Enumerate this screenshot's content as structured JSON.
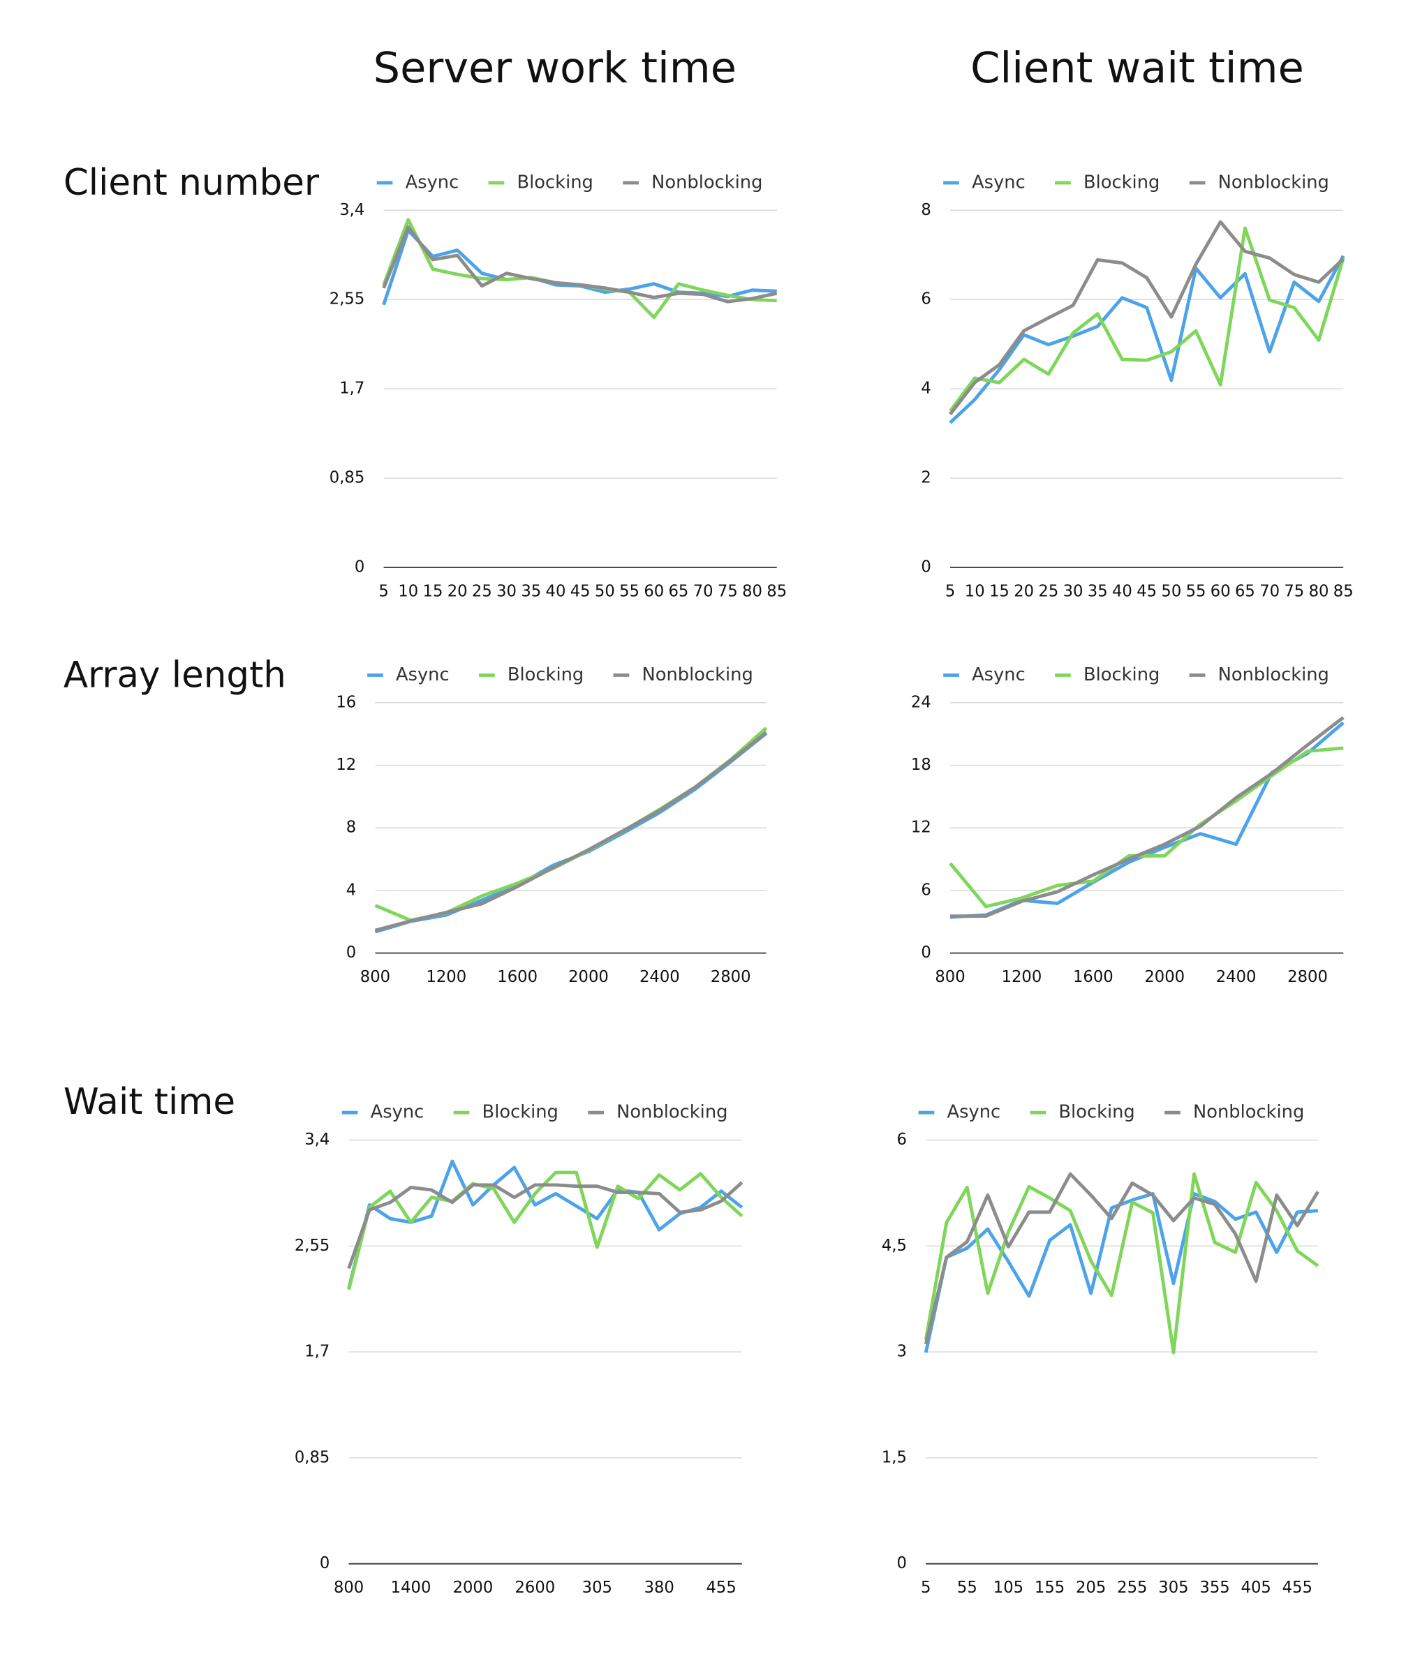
{
  "column_titles": [
    "Server work time",
    "Client wait time"
  ],
  "row_titles": [
    "Client number",
    "Array length",
    "Wait time"
  ],
  "chart_data": [
    {
      "type": "line",
      "legend": "top",
      "grid": true,
      "categories": [
        5,
        10,
        15,
        20,
        25,
        30,
        35,
        40,
        45,
        50,
        55,
        60,
        65,
        70,
        75,
        80,
        85
      ],
      "ylim": [
        0,
        3.4
      ],
      "yticks": [
        0,
        {
          "value": 0.85,
          "label": "0,85"
        },
        {
          "value": 1.7,
          "label": "1,7"
        },
        {
          "value": 2.55,
          "label": "2,55"
        },
        {
          "value": 3.4,
          "label": "3,4"
        }
      ],
      "series": [
        {
          "name": "Async",
          "color": "#4da3ea",
          "values": [
            2.5,
            3.21,
            2.96,
            3.02,
            2.8,
            2.74,
            2.76,
            2.69,
            2.68,
            2.62,
            2.65,
            2.7,
            2.62,
            2.61,
            2.58,
            2.64,
            2.63
          ]
        },
        {
          "name": "Blocking",
          "color": "#7fd65a",
          "values": [
            2.69,
            3.31,
            2.84,
            2.79,
            2.75,
            2.74,
            2.76,
            2.71,
            2.69,
            2.65,
            2.62,
            2.38,
            2.7,
            2.64,
            2.59,
            2.55,
            2.54
          ]
        },
        {
          "name": "Nonblocking",
          "color": "#8c8c8c",
          "values": [
            2.66,
            3.24,
            2.93,
            2.97,
            2.68,
            2.8,
            2.75,
            2.71,
            2.69,
            2.66,
            2.62,
            2.57,
            2.61,
            2.6,
            2.53,
            2.56,
            2.61
          ]
        }
      ]
    },
    {
      "type": "line",
      "legend": "top",
      "grid": true,
      "categories": [
        5,
        10,
        15,
        20,
        25,
        30,
        35,
        40,
        45,
        50,
        55,
        60,
        65,
        70,
        75,
        80,
        85
      ],
      "ylim": [
        0,
        8
      ],
      "yticks": [
        0,
        2,
        4,
        6,
        8
      ],
      "series": [
        {
          "name": "Async",
          "color": "#4da3ea",
          "values": [
            3.24,
            3.76,
            4.43,
            5.21,
            4.99,
            5.18,
            5.4,
            6.04,
            5.82,
            4.19,
            6.7,
            6.04,
            6.58,
            4.83,
            6.39,
            5.96,
            6.98
          ]
        },
        {
          "name": "Blocking",
          "color": "#7fd65a",
          "values": [
            3.5,
            4.24,
            4.14,
            4.66,
            4.33,
            5.25,
            5.68,
            4.66,
            4.64,
            4.83,
            5.3,
            4.09,
            7.6,
            5.99,
            5.82,
            5.09,
            6.93
          ]
        },
        {
          "name": "Nonblocking",
          "color": "#8c8c8c",
          "values": [
            3.43,
            4.14,
            4.54,
            5.3,
            5.59,
            5.87,
            6.89,
            6.82,
            6.49,
            5.61,
            6.79,
            7.74,
            7.08,
            6.93,
            6.56,
            6.39,
            6.91
          ]
        }
      ]
    },
    {
      "type": "line",
      "legend": "top",
      "grid": true,
      "categories": [
        800,
        null,
        1200,
        null,
        1600,
        null,
        2000,
        null,
        2400,
        null,
        2800,
        null
      ],
      "ylim": [
        0,
        16
      ],
      "yticks": [
        0,
        4,
        8,
        12,
        16
      ],
      "series": [
        {
          "name": "Async",
          "color": "#4da3ea",
          "values": [
            1.35,
            2.03,
            2.43,
            3.38,
            4.32,
            5.6,
            6.48,
            7.7,
            8.98,
            10.47,
            12.22,
            14.04
          ]
        },
        {
          "name": "Blocking",
          "color": "#7fd65a",
          "values": [
            3.04,
            2.09,
            2.57,
            3.65,
            4.46,
            5.4,
            6.55,
            7.83,
            9.18,
            10.6,
            12.36,
            14.38
          ]
        },
        {
          "name": "Nonblocking",
          "color": "#8c8c8c",
          "values": [
            1.45,
            2.05,
            2.6,
            3.15,
            4.25,
            5.45,
            6.6,
            7.85,
            9.1,
            10.6,
            12.3,
            14.1
          ]
        }
      ]
    },
    {
      "type": "line",
      "legend": "top",
      "grid": true,
      "categories": [
        800,
        null,
        1200,
        null,
        1600,
        null,
        2000,
        null,
        2400,
        null,
        2800,
        null
      ],
      "ylim": [
        0,
        24
      ],
      "yticks": [
        0,
        6,
        12,
        18,
        24
      ],
      "series": [
        {
          "name": "Async",
          "color": "#4da3ea",
          "values": [
            3.44,
            3.65,
            5.06,
            4.76,
            6.78,
            8.71,
            10.13,
            11.44,
            10.43,
            17.3,
            19.14,
            22.08
          ]
        },
        {
          "name": "Blocking",
          "color": "#7fd65a",
          "values": [
            8.61,
            4.46,
            5.27,
            6.48,
            6.89,
            9.32,
            9.32,
            12.35,
            14.58,
            17.01,
            19.34,
            19.65
          ]
        },
        {
          "name": "Nonblocking",
          "color": "#8c8c8c",
          "values": [
            3.54,
            3.54,
            4.96,
            5.87,
            7.49,
            9.01,
            10.43,
            12.15,
            14.89,
            17.22,
            19.95,
            22.58
          ]
        }
      ]
    },
    {
      "type": "line",
      "legend": "top",
      "grid": true,
      "categories": [
        800,
        null,
        null,
        1400,
        null,
        null,
        2000,
        null,
        null,
        2600,
        null,
        null,
        305,
        null,
        null,
        380,
        null,
        null,
        455,
        null
      ],
      "ylim": [
        0,
        3.4
      ],
      "yticks": [
        0,
        {
          "value": 0.85,
          "label": "0,85"
        },
        {
          "value": 1.7,
          "label": "1,7"
        },
        {
          "value": 2.55,
          "label": "2,55"
        },
        {
          "value": 3.4,
          "label": "3,4"
        }
      ],
      "series": [
        {
          "name": "Async",
          "color": "#4da3ea",
          "values": [
            2.21,
            2.88,
            2.77,
            2.74,
            2.79,
            3.23,
            2.88,
            3.04,
            3.18,
            2.88,
            2.97,
            2.87,
            2.77,
            3.0,
            2.98,
            2.68,
            2.81,
            2.86,
            2.99,
            2.86
          ]
        },
        {
          "name": "Blocking",
          "color": "#7fd65a",
          "values": [
            2.2,
            2.86,
            2.99,
            2.74,
            2.94,
            2.91,
            3.05,
            3.01,
            2.74,
            2.97,
            3.14,
            3.14,
            2.54,
            3.03,
            2.93,
            3.12,
            3.0,
            3.13,
            2.94,
            2.79
          ]
        },
        {
          "name": "Nonblocking",
          "color": "#8c8c8c",
          "values": [
            2.37,
            2.84,
            2.9,
            3.02,
            3.0,
            2.9,
            3.04,
            3.04,
            2.94,
            3.04,
            3.04,
            3.03,
            3.03,
            2.98,
            2.98,
            2.97,
            2.82,
            2.84,
            2.91,
            3.06
          ]
        }
      ]
    },
    {
      "type": "line",
      "legend": "top",
      "grid": true,
      "categories": [
        5,
        null,
        55,
        null,
        105,
        null,
        155,
        null,
        205,
        null,
        255,
        null,
        305,
        null,
        355,
        null,
        405,
        null,
        455,
        null
      ],
      "ylim": [
        0,
        6
      ],
      "yticks": [
        0,
        {
          "value": 1.5,
          "label": "1,5"
        },
        3,
        {
          "value": 4.5,
          "label": "4,5"
        },
        6
      ],
      "series": [
        {
          "name": "Async",
          "color": "#4da3ea",
          "values": [
            2.99,
            4.34,
            4.47,
            4.74,
            4.28,
            3.79,
            4.58,
            4.8,
            3.83,
            5.04,
            5.15,
            5.24,
            3.97,
            5.24,
            5.13,
            4.88,
            4.98,
            4.41,
            4.98,
            5.0
          ]
        },
        {
          "name": "Blocking",
          "color": "#7fd65a",
          "values": [
            3.17,
            4.83,
            5.33,
            3.83,
            4.7,
            5.34,
            5.18,
            5.0,
            4.29,
            3.8,
            5.12,
            4.97,
            2.99,
            5.52,
            4.55,
            4.41,
            5.4,
            5.0,
            4.43,
            4.22
          ]
        },
        {
          "name": "Nonblocking",
          "color": "#8c8c8c",
          "values": [
            3.11,
            4.34,
            4.56,
            5.22,
            4.49,
            4.98,
            4.98,
            5.52,
            5.22,
            4.89,
            5.39,
            5.22,
            4.86,
            5.18,
            5.09,
            4.67,
            4.0,
            5.22,
            4.79,
            5.27
          ]
        }
      ]
    }
  ]
}
